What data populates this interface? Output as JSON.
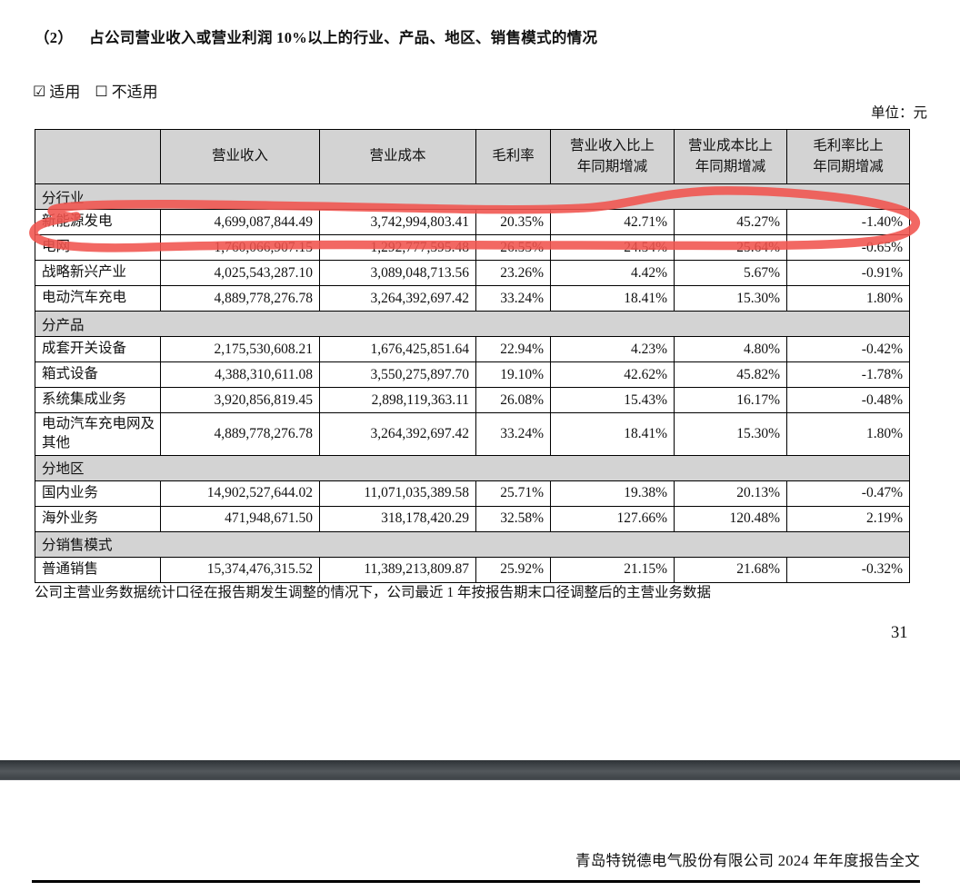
{
  "page": {
    "title_number": "（2）",
    "title_text": "占公司营业收入或营业利润 10%以上的行业、产品、地区、销售模式的情况",
    "unit_label": "单位：元",
    "footnote": "公司主营业务数据统计口径在报告期发生调整的情况下，公司最近 1 年按报告期末口径调整后的主营业务数据",
    "page_number": "31",
    "doc_footer": "青岛特锐德电气股份有限公司 2024 年年度报告全文"
  },
  "applicability": {
    "checked_icon": "☑",
    "unchecked_icon": "☐",
    "applicable_label": "适用",
    "not_applicable_label": "不适用"
  },
  "table": {
    "headers": [
      {
        "l1": "",
        "l2": ""
      },
      {
        "l1": "营业收入",
        "l2": ""
      },
      {
        "l1": "营业成本",
        "l2": ""
      },
      {
        "l1": "毛利率",
        "l2": ""
      },
      {
        "l1": "营业收入比上",
        "l2": "年同期增减"
      },
      {
        "l1": "营业成本比上",
        "l2": "年同期增减"
      },
      {
        "l1": "毛利率比上",
        "l2": "年同期增减"
      }
    ],
    "sections": [
      {
        "label": "分行业",
        "rows": [
          {
            "name": "新能源发电",
            "values": [
              "4,699,087,844.49",
              "3,742,994,803.41",
              "20.35%",
              "42.71%",
              "45.27%",
              "-1.40%"
            ],
            "annotated": true
          },
          {
            "name": "电网",
            "values": [
              "1,760,066,907.15",
              "1,292,777,595.48",
              "26.55%",
              "24.54%",
              "25.64%",
              "-0.65%"
            ]
          },
          {
            "name": "战略新兴产业",
            "values": [
              "4,025,543,287.10",
              "3,089,048,713.56",
              "23.26%",
              "4.42%",
              "5.67%",
              "-0.91%"
            ]
          },
          {
            "name": "电动汽车充电",
            "values": [
              "4,889,778,276.78",
              "3,264,392,697.42",
              "33.24%",
              "18.41%",
              "15.30%",
              "1.80%"
            ]
          }
        ]
      },
      {
        "label": "分产品",
        "rows": [
          {
            "name": "成套开关设备",
            "values": [
              "2,175,530,608.21",
              "1,676,425,851.64",
              "22.94%",
              "4.23%",
              "4.80%",
              "-0.42%"
            ]
          },
          {
            "name": "箱式设备",
            "values": [
              "4,388,310,611.08",
              "3,550,275,897.70",
              "19.10%",
              "42.62%",
              "45.82%",
              "-1.78%"
            ]
          },
          {
            "name": "系统集成业务",
            "values": [
              "3,920,856,819.45",
              "2,898,119,363.11",
              "26.08%",
              "15.43%",
              "16.17%",
              "-0.48%"
            ]
          },
          {
            "name": "电动汽车充电网及其他",
            "values": [
              "4,889,778,276.78",
              "3,264,392,697.42",
              "33.24%",
              "18.41%",
              "15.30%",
              "1.80%"
            ],
            "tall": true
          }
        ]
      },
      {
        "label": "分地区",
        "rows": [
          {
            "name": "国内业务",
            "values": [
              "14,902,527,644.02",
              "11,071,035,389.58",
              "25.71%",
              "19.38%",
              "20.13%",
              "-0.47%"
            ]
          },
          {
            "name": "海外业务",
            "values": [
              "471,948,671.50",
              "318,178,420.29",
              "32.58%",
              "127.66%",
              "120.48%",
              "2.19%"
            ]
          }
        ]
      },
      {
        "label": "分销售模式",
        "rows": [
          {
            "name": "普通销售",
            "values": [
              "15,374,476,315.52",
              "11,389,213,809.87",
              "25.92%",
              "21.15%",
              "21.68%",
              "-0.32%"
            ]
          }
        ]
      }
    ]
  },
  "annotation": {
    "type": "hand-drawn-ellipse",
    "color": "#f0534d",
    "highlighted_row": "新能源发电"
  },
  "colors": {
    "table_header_bg": "#d3d3d3",
    "section_row_bg": "#d3d3d3",
    "separator_bar": "#43484c"
  }
}
